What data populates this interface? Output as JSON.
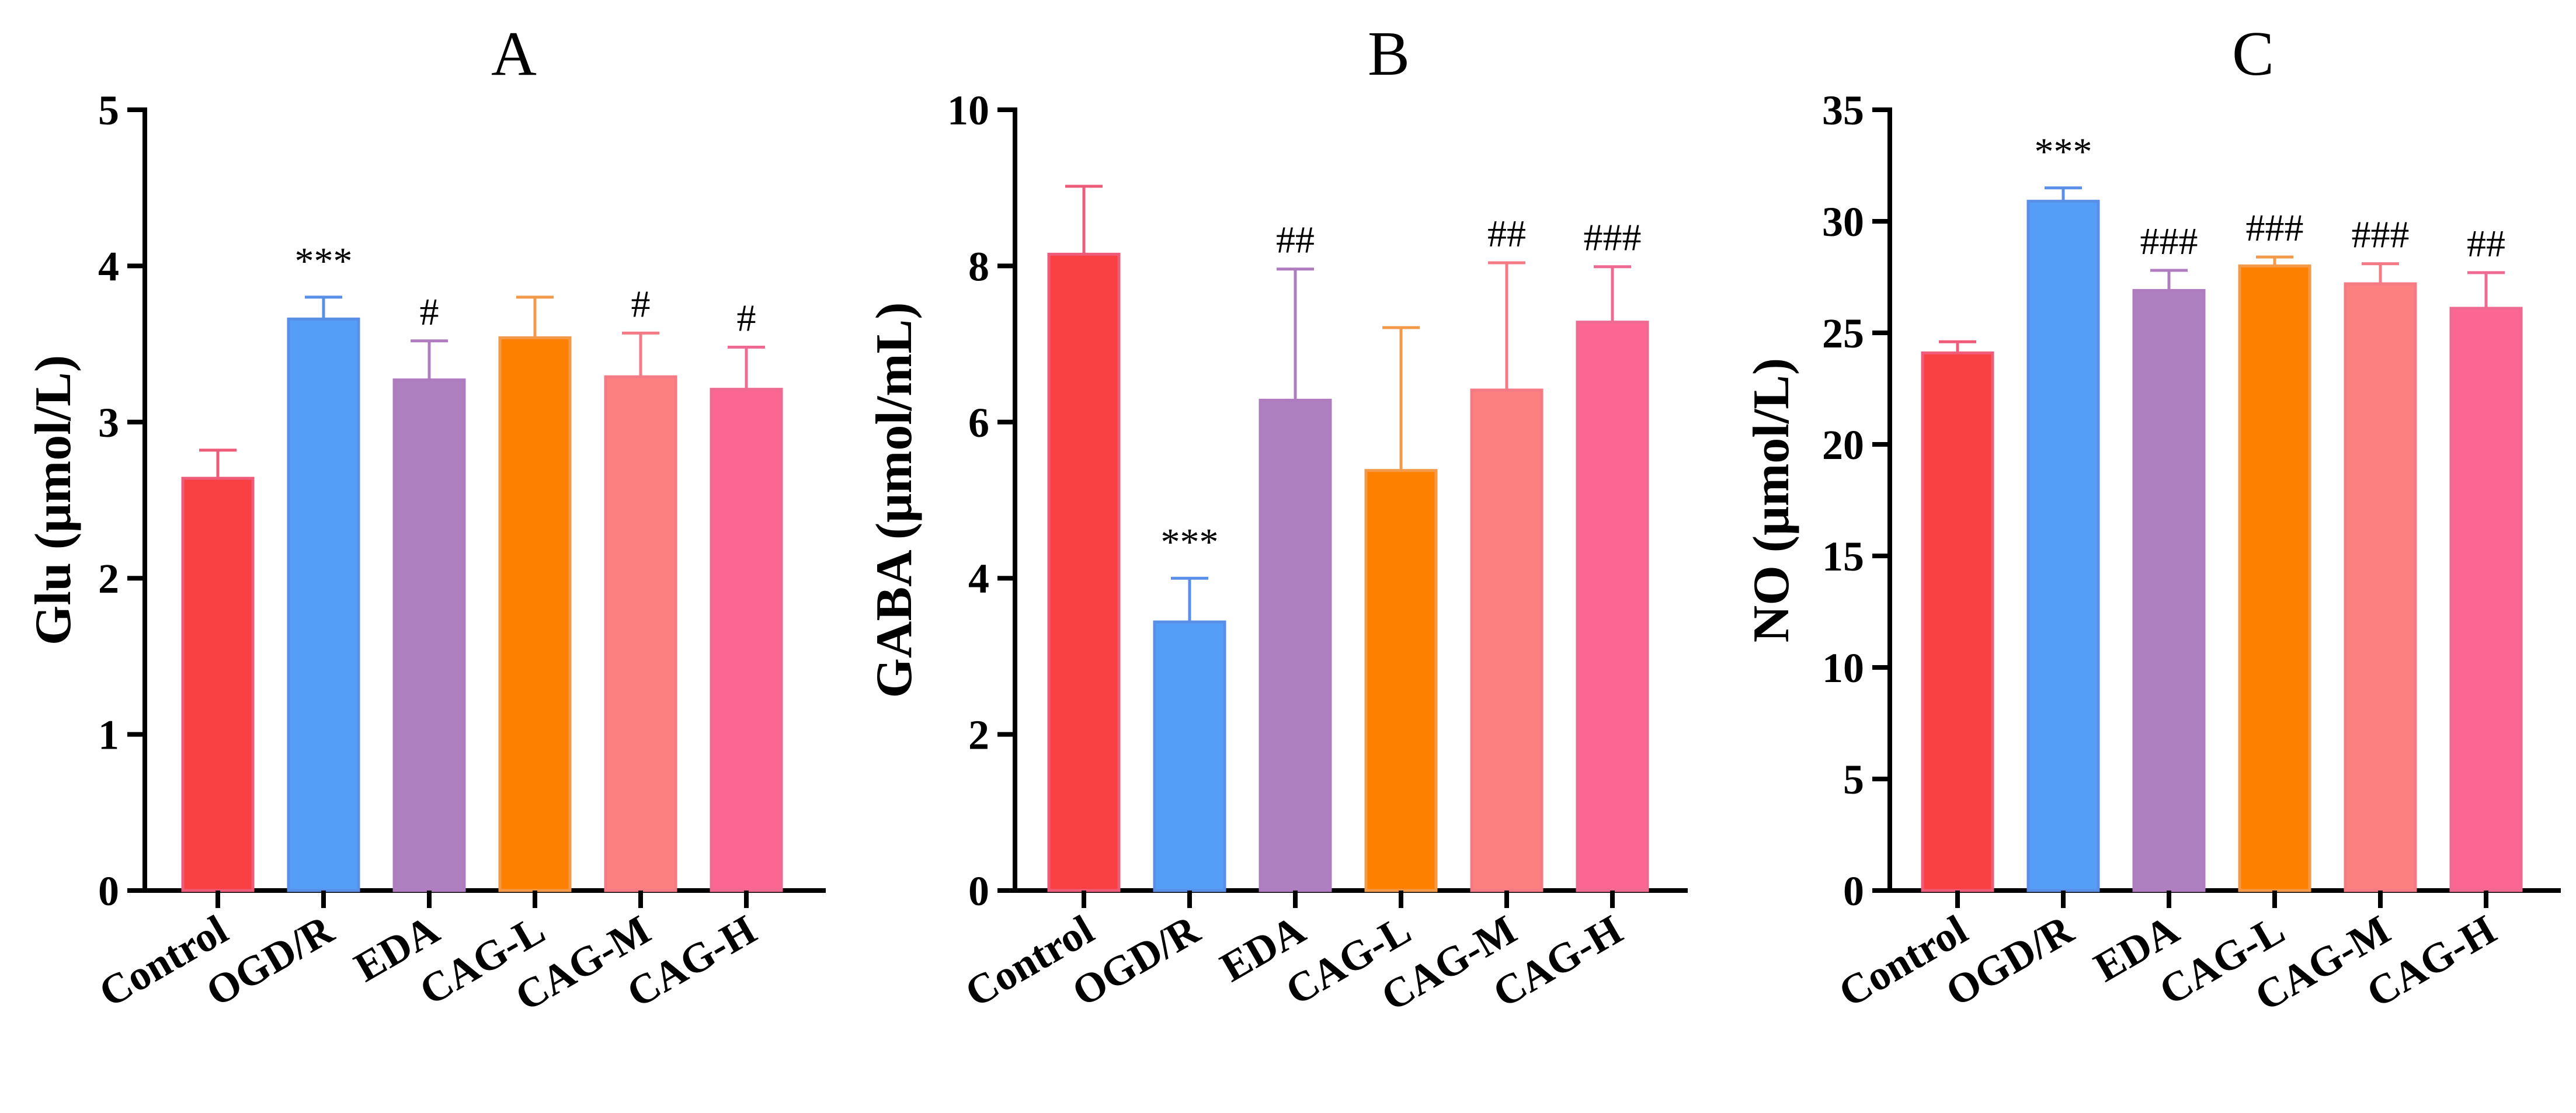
{
  "chart_data": [
    {
      "type": "bar",
      "title": "A",
      "ylabel": "Glu (μmol/L)",
      "xlabel": "",
      "ylim": [
        0,
        5
      ],
      "yticks": [
        0,
        1,
        2,
        3,
        4,
        5
      ],
      "categories": [
        "Control",
        "OGD/R",
        "EDA",
        "CAG-L",
        "CAG-M",
        "CAG-H"
      ],
      "values": [
        2.64,
        3.66,
        3.27,
        3.54,
        3.29,
        3.21
      ],
      "error_upper": [
        2.82,
        3.8,
        3.52,
        3.8,
        3.57,
        3.48
      ],
      "significance": [
        "",
        "***",
        "#",
        "",
        "#",
        "#"
      ],
      "colors": [
        "#f94144",
        "#559ef8",
        "#ae80bf",
        "#fe8000",
        "#fd8080",
        "#fb6692"
      ],
      "edge_colors": [
        "#ef5c7a",
        "#5a8fe8",
        "#b07cc0",
        "#f39a4a",
        "#f47a86",
        "#ef6a90"
      ]
    },
    {
      "type": "bar",
      "title": "B",
      "ylabel": "GABA (μmol/mL)",
      "xlabel": "",
      "ylim": [
        0,
        10
      ],
      "yticks": [
        0,
        2,
        4,
        6,
        8,
        10
      ],
      "categories": [
        "Control",
        "OGD/R",
        "EDA",
        "CAG-L",
        "CAG-M",
        "CAG-H"
      ],
      "values": [
        8.15,
        3.44,
        6.28,
        5.38,
        6.41,
        7.28
      ],
      "error_upper": [
        9.02,
        4.0,
        7.96,
        7.21,
        8.04,
        7.99
      ],
      "significance": [
        "",
        "***",
        "##",
        "",
        "##",
        "###"
      ],
      "colors": [
        "#f94144",
        "#559ef8",
        "#ae80bf",
        "#fe8000",
        "#fd8080",
        "#fb6692"
      ],
      "edge_colors": [
        "#ef5c7a",
        "#5a8fe8",
        "#b07cc0",
        "#f39a4a",
        "#f47a86",
        "#ef6a90"
      ]
    },
    {
      "type": "bar",
      "title": "C",
      "ylabel": "NO (μmol/L)",
      "xlabel": "",
      "ylim": [
        0,
        35
      ],
      "yticks": [
        0,
        5,
        10,
        15,
        20,
        25,
        30,
        35
      ],
      "categories": [
        "Control",
        "OGD/R",
        "EDA",
        "CAG-L",
        "CAG-M",
        "CAG-H"
      ],
      "values": [
        24.1,
        30.9,
        26.9,
        28.0,
        27.2,
        26.1
      ],
      "error_upper": [
        24.6,
        31.5,
        27.8,
        28.4,
        28.1,
        27.7
      ],
      "significance": [
        "",
        "***",
        "###",
        "###",
        "###",
        "##"
      ],
      "colors": [
        "#f94144",
        "#559ef8",
        "#ae80bf",
        "#fe8000",
        "#fd8080",
        "#fb6692"
      ],
      "edge_colors": [
        "#ef5c7a",
        "#5a8fe8",
        "#b07cc0",
        "#f39a4a",
        "#f47a86",
        "#ef6a90"
      ]
    }
  ]
}
